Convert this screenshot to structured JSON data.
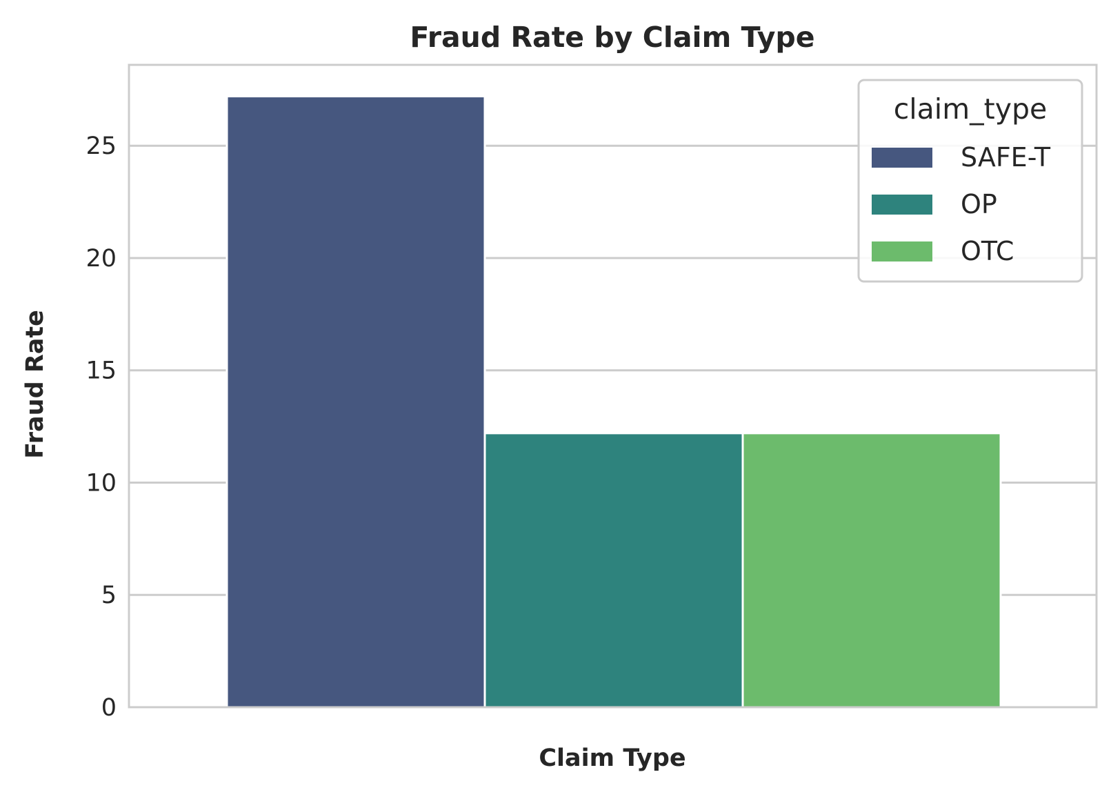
{
  "chart_data": {
    "type": "bar",
    "title": "Fraud Rate by Claim Type",
    "xlabel": "Claim Type",
    "ylabel": "Fraud Rate",
    "ylim": [
      0,
      28.6
    ],
    "yticks": [
      0,
      5,
      10,
      15,
      20,
      25
    ],
    "grid": true,
    "legend": {
      "title": "claim_type",
      "placement": "top-right"
    },
    "series": [
      {
        "name": "SAFE-T",
        "value": 27.2,
        "color": "#46577f"
      },
      {
        "name": "OP",
        "value": 12.2,
        "color": "#2e837d"
      },
      {
        "name": "OTC",
        "value": 12.2,
        "color": "#6cbb6c"
      }
    ]
  }
}
